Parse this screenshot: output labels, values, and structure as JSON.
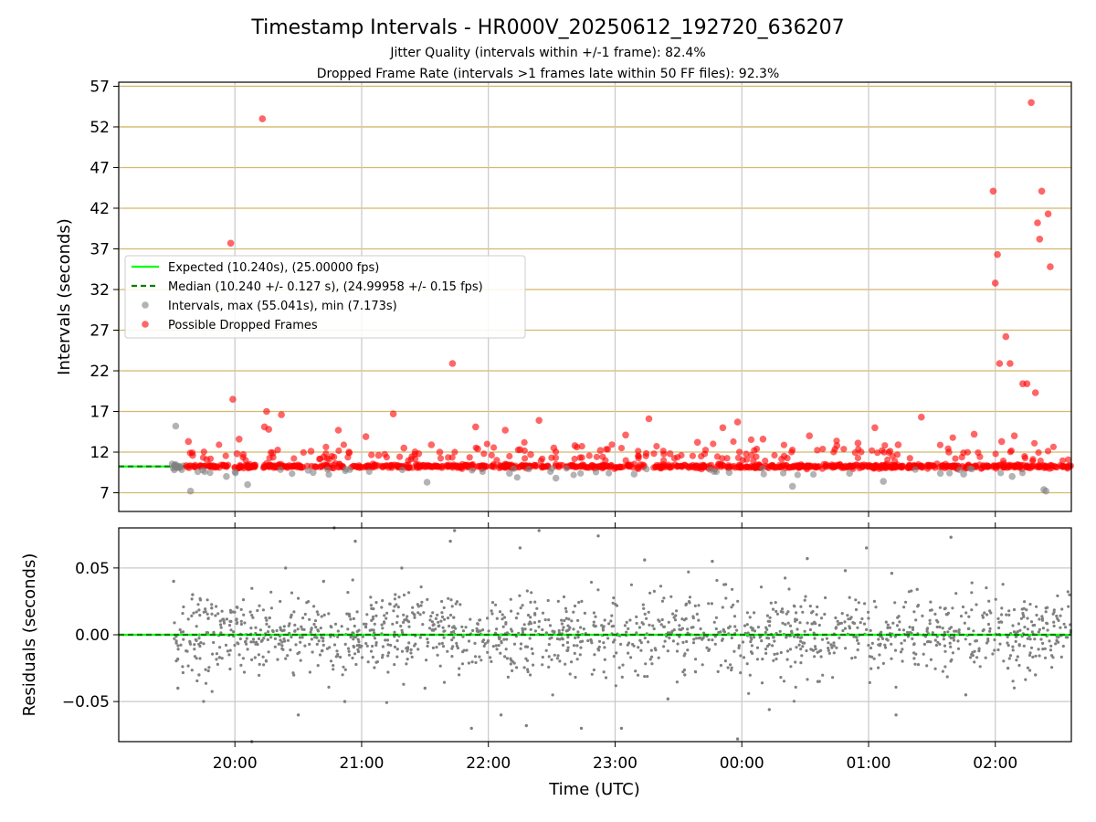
{
  "chart_data": [
    {
      "type": "scatter",
      "title": "Timestamp Intervals - HR000V_20250612_192720_636207",
      "subtitle_1": "Jitter Quality (intervals within +/-1 frame): 82.4%",
      "subtitle_2": "Dropped Frame Rate (intervals >1 frames late within 50 FF files): 92.3%",
      "xlabel": "",
      "ylabel": "Intervals (seconds)",
      "xlim": [
        "19:05",
        "02:36"
      ],
      "ylim": [
        4.7,
        57.5
      ],
      "yticks": [
        "7",
        "12",
        "17",
        "22",
        "27",
        "32",
        "37",
        "42",
        "47",
        "52",
        "57"
      ],
      "xticks": [
        "20:00",
        "21:00",
        "22:00",
        "23:00",
        "00:00",
        "01:00",
        "02:00"
      ],
      "grid": true,
      "legend_position": "center-left",
      "legend": [
        "Expected (10.240s), (25.00000 fps)",
        "Median (10.240 +/- 0.127 s), (24.99958 +/- 0.15 fps)",
        "Intervals, max (55.041s), min (7.173s)",
        "Possible Dropped Frames"
      ],
      "expected_interval": 10.24,
      "median_interval": 10.24,
      "series": [
        {
          "name": "Possible Dropped Frames",
          "color": "#ff0000",
          "x": [
            "19:38",
            "19:40",
            "19:58",
            "19:59",
            "20:01",
            "20:02",
            "20:04",
            "20:13",
            "20:14",
            "20:15",
            "20:16",
            "20:18",
            "20:22",
            "20:36",
            "20:42",
            "20:49",
            "20:54",
            "21:02",
            "21:08",
            "21:15",
            "21:20",
            "21:27",
            "21:33",
            "21:37",
            "21:43",
            "21:54",
            "21:55",
            "22:08",
            "22:15",
            "22:20",
            "22:24",
            "22:31",
            "22:41",
            "22:53",
            "23:05",
            "23:16",
            "23:26",
            "23:39",
            "23:51",
            "23:58",
            "24:10",
            "24:20",
            "24:32",
            "24:45",
            "24:55",
            "25:03",
            "25:14",
            "25:25",
            "25:38",
            "25:50",
            "25:59",
            "26:00",
            "26:01",
            "26:02",
            "26:03",
            "26:05",
            "26:07",
            "26:09",
            "26:13",
            "26:15",
            "26:17",
            "26:19",
            "26:20",
            "26:21",
            "26:22",
            "26:25",
            "26:26"
          ],
          "y": [
            13.3,
            11.6,
            37.7,
            18.5,
            11.8,
            13.6,
            11.7,
            53.0,
            15.1,
            17.0,
            14.8,
            11.9,
            16.6,
            12.1,
            11.4,
            14.7,
            12.0,
            13.9,
            11.6,
            16.7,
            12.5,
            11.8,
            12.9,
            12.0,
            22.9,
            15.1,
            12.4,
            14.7,
            12.3,
            11.7,
            15.9,
            12.5,
            12.8,
            12.2,
            14.1,
            16.1,
            11.8,
            13.2,
            15.0,
            15.7,
            13.6,
            11.5,
            14.0,
            12.8,
            13.1,
            15.0,
            12.9,
            16.3,
            12.0,
            14.2,
            44.1,
            32.8,
            36.3,
            22.9,
            13.3,
            26.2,
            22.9,
            14.0,
            20.4,
            20.4,
            55.0,
            19.3,
            40.2,
            38.2,
            44.1,
            41.3,
            34.8
          ]
        },
        {
          "name": "Intervals, max (55.041s), min (7.173s)",
          "color": "#808080",
          "x": [
            "19:32",
            "19:39",
            "19:56",
            "20:06",
            "20:37",
            "21:31",
            "22:10",
            "22:32",
            "23:09",
            "23:54",
            "24:24",
            "24:51",
            "25:07",
            "25:34",
            "25:45",
            "26:08",
            "26:23",
            "26:24"
          ],
          "y": [
            15.2,
            7.2,
            9.0,
            8.0,
            9.5,
            8.3,
            9.4,
            8.8,
            9.3,
            9.5,
            7.8,
            9.4,
            8.4,
            9.4,
            9.3,
            9.0,
            7.4,
            7.2
          ]
        }
      ]
    },
    {
      "type": "scatter",
      "xlabel": "Time (UTC)",
      "ylabel": "Residuals (seconds)",
      "xlim": [
        "19:05",
        "02:36"
      ],
      "ylim": [
        -0.08,
        0.08
      ],
      "yticks": [
        "0.05",
        "0.00",
        "−0.05"
      ],
      "xticks": [
        "20:00",
        "21:00",
        "22:00",
        "23:00",
        "00:00",
        "01:00",
        "02:00"
      ],
      "grid": true,
      "residual_spread_sd": 0.015,
      "series": [
        {
          "name": "Residuals",
          "color": "#808080",
          "x": [
            "19:31",
            "19:33",
            "19:40",
            "19:43",
            "19:49",
            "20:08",
            "20:24",
            "20:30",
            "20:42",
            "20:47",
            "20:52",
            "20:57",
            "21:19",
            "21:30",
            "21:42",
            "21:44",
            "21:52",
            "22:06",
            "22:15",
            "22:18",
            "22:24",
            "22:44",
            "22:52",
            "23:03",
            "23:14",
            "23:25",
            "23:33",
            "23:46",
            "23:58",
            "24:13",
            "24:31",
            "24:36",
            "24:49",
            "24:59",
            "25:11",
            "25:13",
            "25:23",
            "25:39",
            "25:46",
            "26:06",
            "26:19",
            "26:24"
          ],
          "y": [
            0.04,
            -0.04,
            0.03,
            -0.03,
            0.02,
            -0.08,
            0.05,
            -0.06,
            0.04,
            0.08,
            -0.05,
            0.07,
            0.05,
            -0.04,
            0.07,
            0.078,
            -0.07,
            -0.06,
            0.065,
            -0.068,
            0.078,
            -0.07,
            0.074,
            -0.07,
            0.056,
            -0.048,
            -0.03,
            0.055,
            -0.078,
            -0.056,
            0.057,
            -0.035,
            0.048,
            0.065,
            0.046,
            -0.06,
            0.034,
            0.073,
            -0.045,
            -0.025,
            -0.03,
            0.02
          ]
        }
      ]
    }
  ]
}
